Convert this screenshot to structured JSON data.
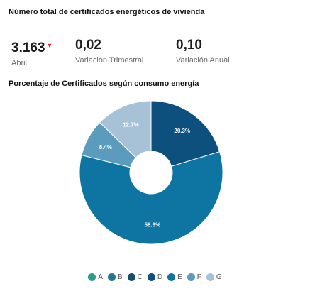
{
  "header": {
    "title": "Número total de certificados energéticos de vivienda"
  },
  "kpis": [
    {
      "value": "3.163",
      "label": "Abril",
      "trend": "down"
    },
    {
      "value": "0,02",
      "label": "Variación Trimestral"
    },
    {
      "value": "0,10",
      "label": "Variación Anual"
    }
  ],
  "chart_data": {
    "type": "pie",
    "title": "Porcentaje de Certificados según consumo energía",
    "donut": true,
    "slices": [
      {
        "name": "D",
        "value": 20.3,
        "label": "20.3%",
        "color": "#0d4f7d"
      },
      {
        "name": "E",
        "value": 58.6,
        "label": "58.6%",
        "color": "#0e74a2"
      },
      {
        "name": "F",
        "value": 8.4,
        "label": "8.4%",
        "color": "#5b9bbd"
      },
      {
        "name": "G",
        "value": 12.7,
        "label": "12.7%",
        "color": "#a7c1d6"
      }
    ],
    "legend": {
      "position": "bottom",
      "entries": [
        {
          "name": "A",
          "color": "#2a9d8f"
        },
        {
          "name": "B",
          "color": "#1f7a8c"
        },
        {
          "name": "C",
          "color": "#14506a"
        },
        {
          "name": "D",
          "color": "#0d4f7d"
        },
        {
          "name": "E",
          "color": "#0e74a2"
        },
        {
          "name": "F",
          "color": "#5b9bbd"
        },
        {
          "name": "G",
          "color": "#a7c1d6"
        }
      ]
    }
  }
}
